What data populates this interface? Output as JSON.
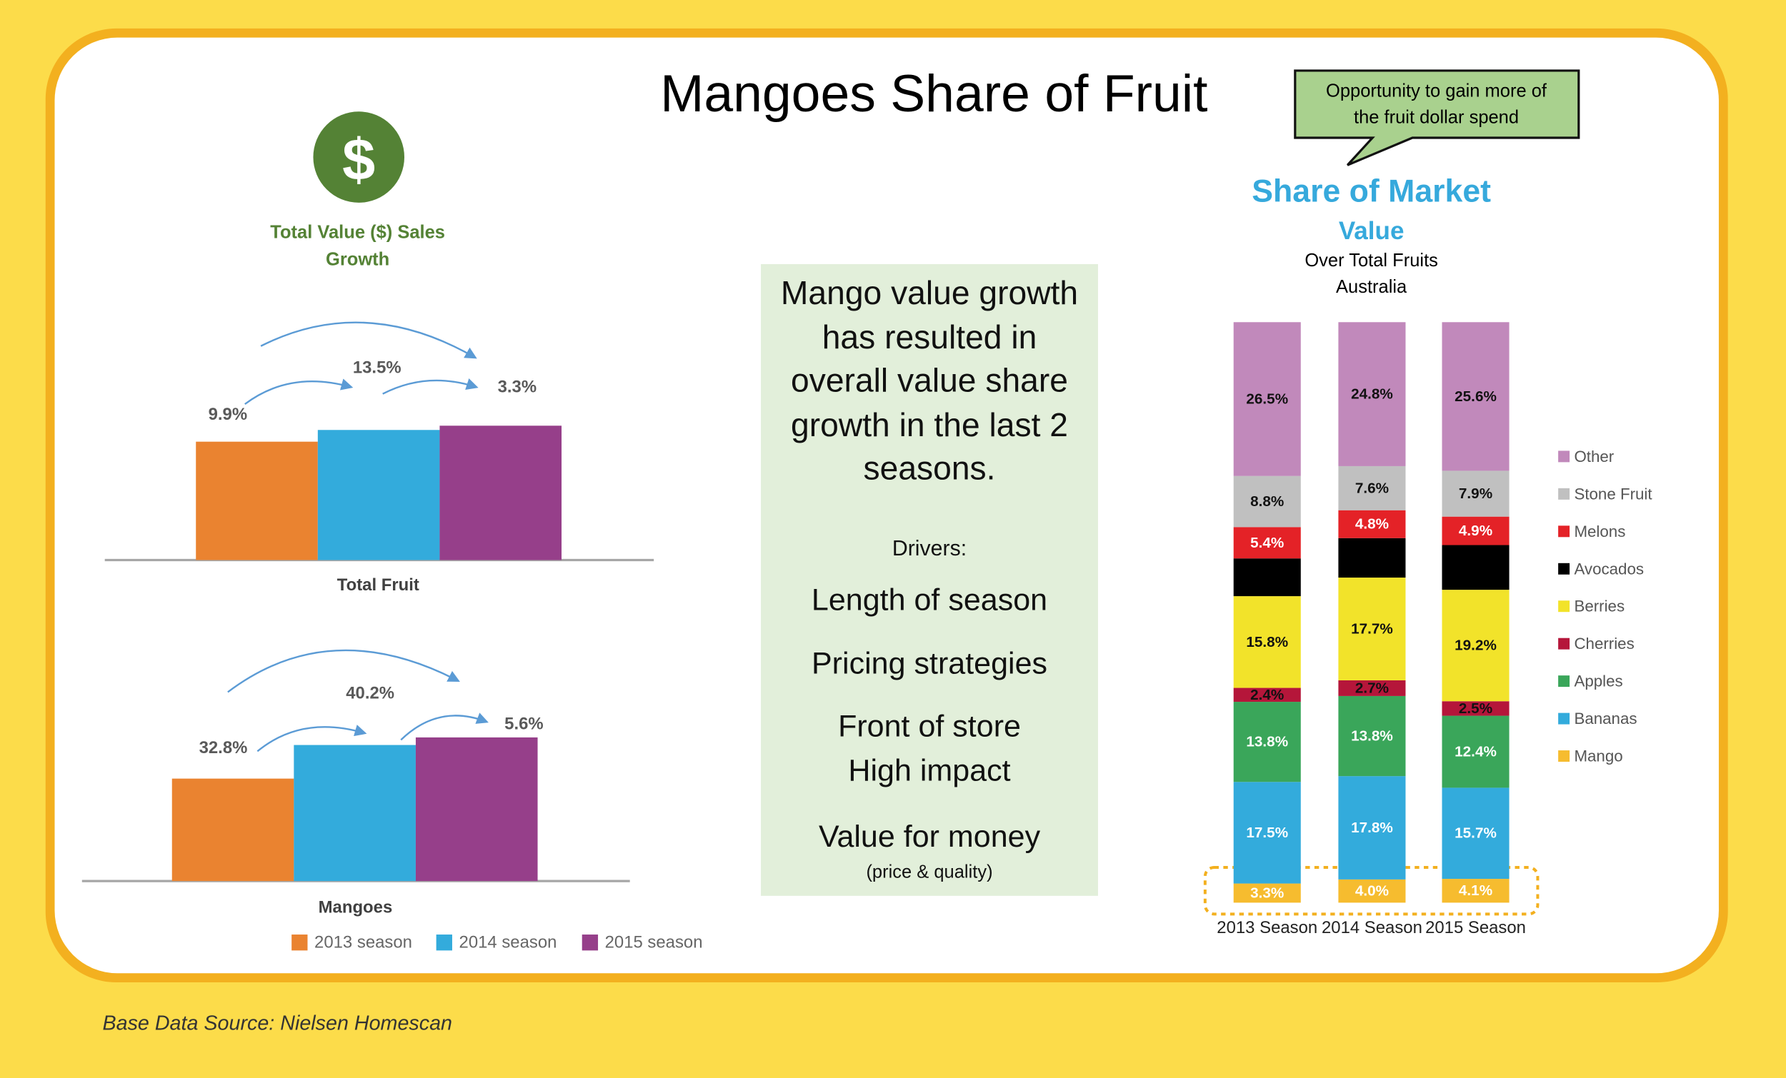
{
  "title": "Mangoes Share of Fruit",
  "icon": "$",
  "growth_heading": [
    "Total Value ($) Sales",
    "Growth"
  ],
  "callout": [
    "Opportunity to gain more of",
    "the fruit dollar spend"
  ],
  "drivers_box": {
    "headline": [
      "Mango value growth",
      "has resulted in",
      "overall value share",
      "growth in the last 2",
      "seasons."
    ],
    "drivers_label": "Drivers:",
    "drivers": [
      [
        "Length of season"
      ],
      [
        "Pricing strategies"
      ],
      [
        "Front of store",
        "High impact"
      ],
      [
        "Value for money"
      ]
    ],
    "note": "(price & quality)"
  },
  "source": "Base Data Source: Nielsen Homescan",
  "chart_data": [
    {
      "type": "bar",
      "categories": [
        "Total Fruit"
      ],
      "ylim": [
        0,
        200
      ],
      "legend": false,
      "annotations": [
        "9.9%",
        "13.5%",
        "3.3%"
      ],
      "series": [
        {
          "name": "2013 season",
          "color": "#ea8330",
          "values": [
            100
          ]
        },
        {
          "name": "2014 season",
          "color": "#33abdc",
          "values": [
            109.9
          ]
        },
        {
          "name": "2015 season",
          "color": "#963f8a",
          "values": [
            113.5
          ]
        }
      ]
    },
    {
      "type": "bar",
      "categories": [
        "Mangoes"
      ],
      "ylim": [
        0,
        200
      ],
      "legend": true,
      "annotations": [
        "32.8%",
        "40.2%",
        "5.6%"
      ],
      "series": [
        {
          "name": "2013 season",
          "color": "#ea8330",
          "values": [
            100
          ]
        },
        {
          "name": "2014 season",
          "color": "#33abdc",
          "values": [
            132.8
          ]
        },
        {
          "name": "2015 season",
          "color": "#963f8a",
          "values": [
            140.2
          ]
        }
      ]
    },
    {
      "type": "stacked_bar",
      "title": "Share of Market",
      "subtitle": "Value",
      "notes": [
        "Over Total Fruits",
        "Australia"
      ],
      "categories": [
        "2013 Season",
        "2014 Season",
        "2015 Season"
      ],
      "ylim": [
        0,
        100
      ],
      "legend": true,
      "series": [
        {
          "name": "Mango",
          "color": "#f6bc2f",
          "values": [
            3.3,
            4.0,
            4.1
          ],
          "value_labels": [
            "3.3%",
            "4.0%",
            "4.1%"
          ]
        },
        {
          "name": "Bananas",
          "color": "#33abdc",
          "values": [
            17.5,
            17.8,
            15.7
          ],
          "value_labels": [
            "17.5%",
            "17.8%",
            "15.7%"
          ]
        },
        {
          "name": "Apples",
          "color": "#3aa65a",
          "values": [
            13.8,
            13.8,
            12.4
          ],
          "value_labels": [
            "13.8%",
            "13.8%",
            "12.4%"
          ]
        },
        {
          "name": "Cherries",
          "color": "#b5163a",
          "values": [
            2.4,
            2.7,
            2.5
          ],
          "value_labels": [
            "2.4%",
            "2.7%",
            "2.5%"
          ]
        },
        {
          "name": "Berries",
          "color": "#f2e32a",
          "values": [
            15.8,
            17.7,
            19.2
          ],
          "value_labels": [
            "15.8%",
            "17.7%",
            "19.2%"
          ]
        },
        {
          "name": "Avocados",
          "color": "#000000",
          "values": [
            6.5,
            6.8,
            7.7
          ]
        },
        {
          "name": "Melons",
          "color": "#e42227",
          "values": [
            5.4,
            4.8,
            4.9
          ],
          "value_labels": [
            "5.4%",
            "4.8%",
            "4.9%"
          ]
        },
        {
          "name": "Stone Fruit",
          "color": "#c0c0c0",
          "values": [
            8.8,
            7.6,
            7.9
          ],
          "value_labels": [
            "8.8%",
            "7.6%",
            "7.9%"
          ]
        },
        {
          "name": "Other",
          "color": "#c189bb",
          "values": [
            26.5,
            24.8,
            25.6
          ],
          "value_labels": [
            "26.5%",
            "24.8%",
            "25.6%"
          ]
        }
      ]
    }
  ]
}
